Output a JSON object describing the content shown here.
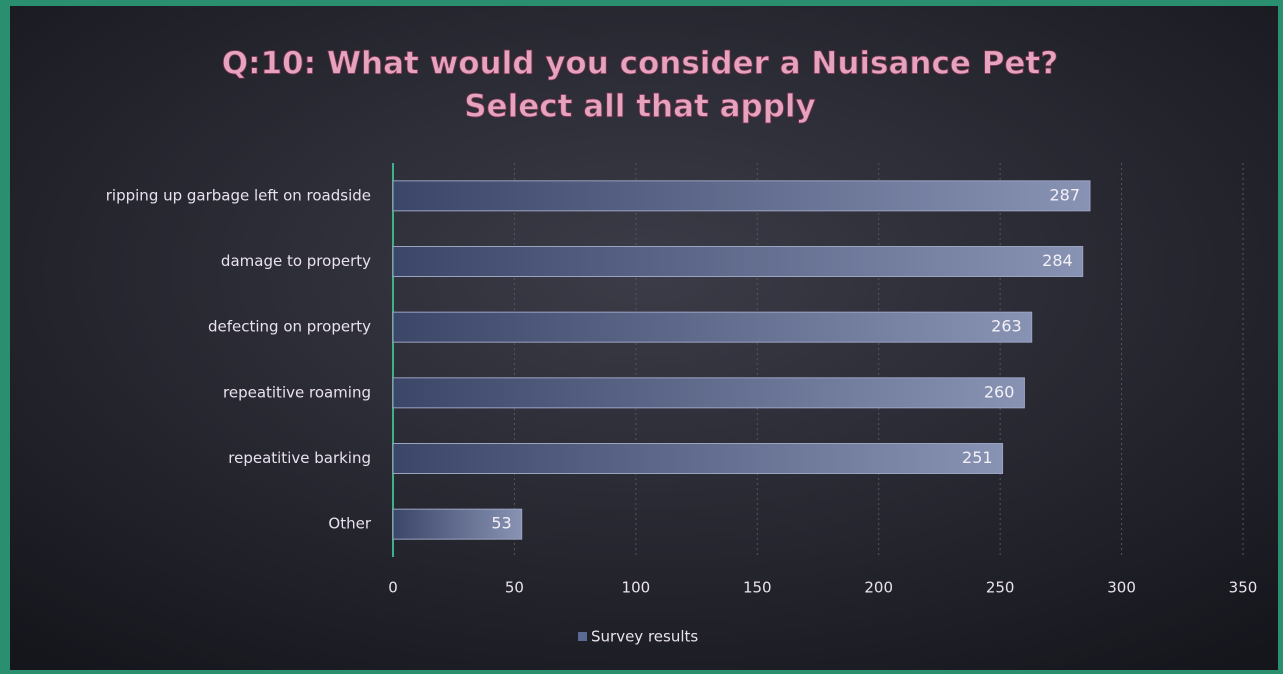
{
  "chart_data": {
    "type": "bar",
    "orientation": "horizontal",
    "title": [
      "Q:10: What would you consider a Nuisance Pet?",
      "Select all that apply"
    ],
    "categories": [
      "ripping up garbage left on roadside",
      "damage to property",
      "defecting on property",
      "repeatitive roaming",
      "repeatitive barking",
      "Other"
    ],
    "series": [
      {
        "name": "Survey results",
        "color": "#5b6a92",
        "values": [
          287,
          284,
          263,
          260,
          251,
          53
        ]
      }
    ],
    "xlim": [
      0,
      350
    ],
    "xticks": [
      0,
      50,
      100,
      150,
      200,
      250,
      300,
      350
    ],
    "grid": true,
    "legend": "bottom"
  }
}
